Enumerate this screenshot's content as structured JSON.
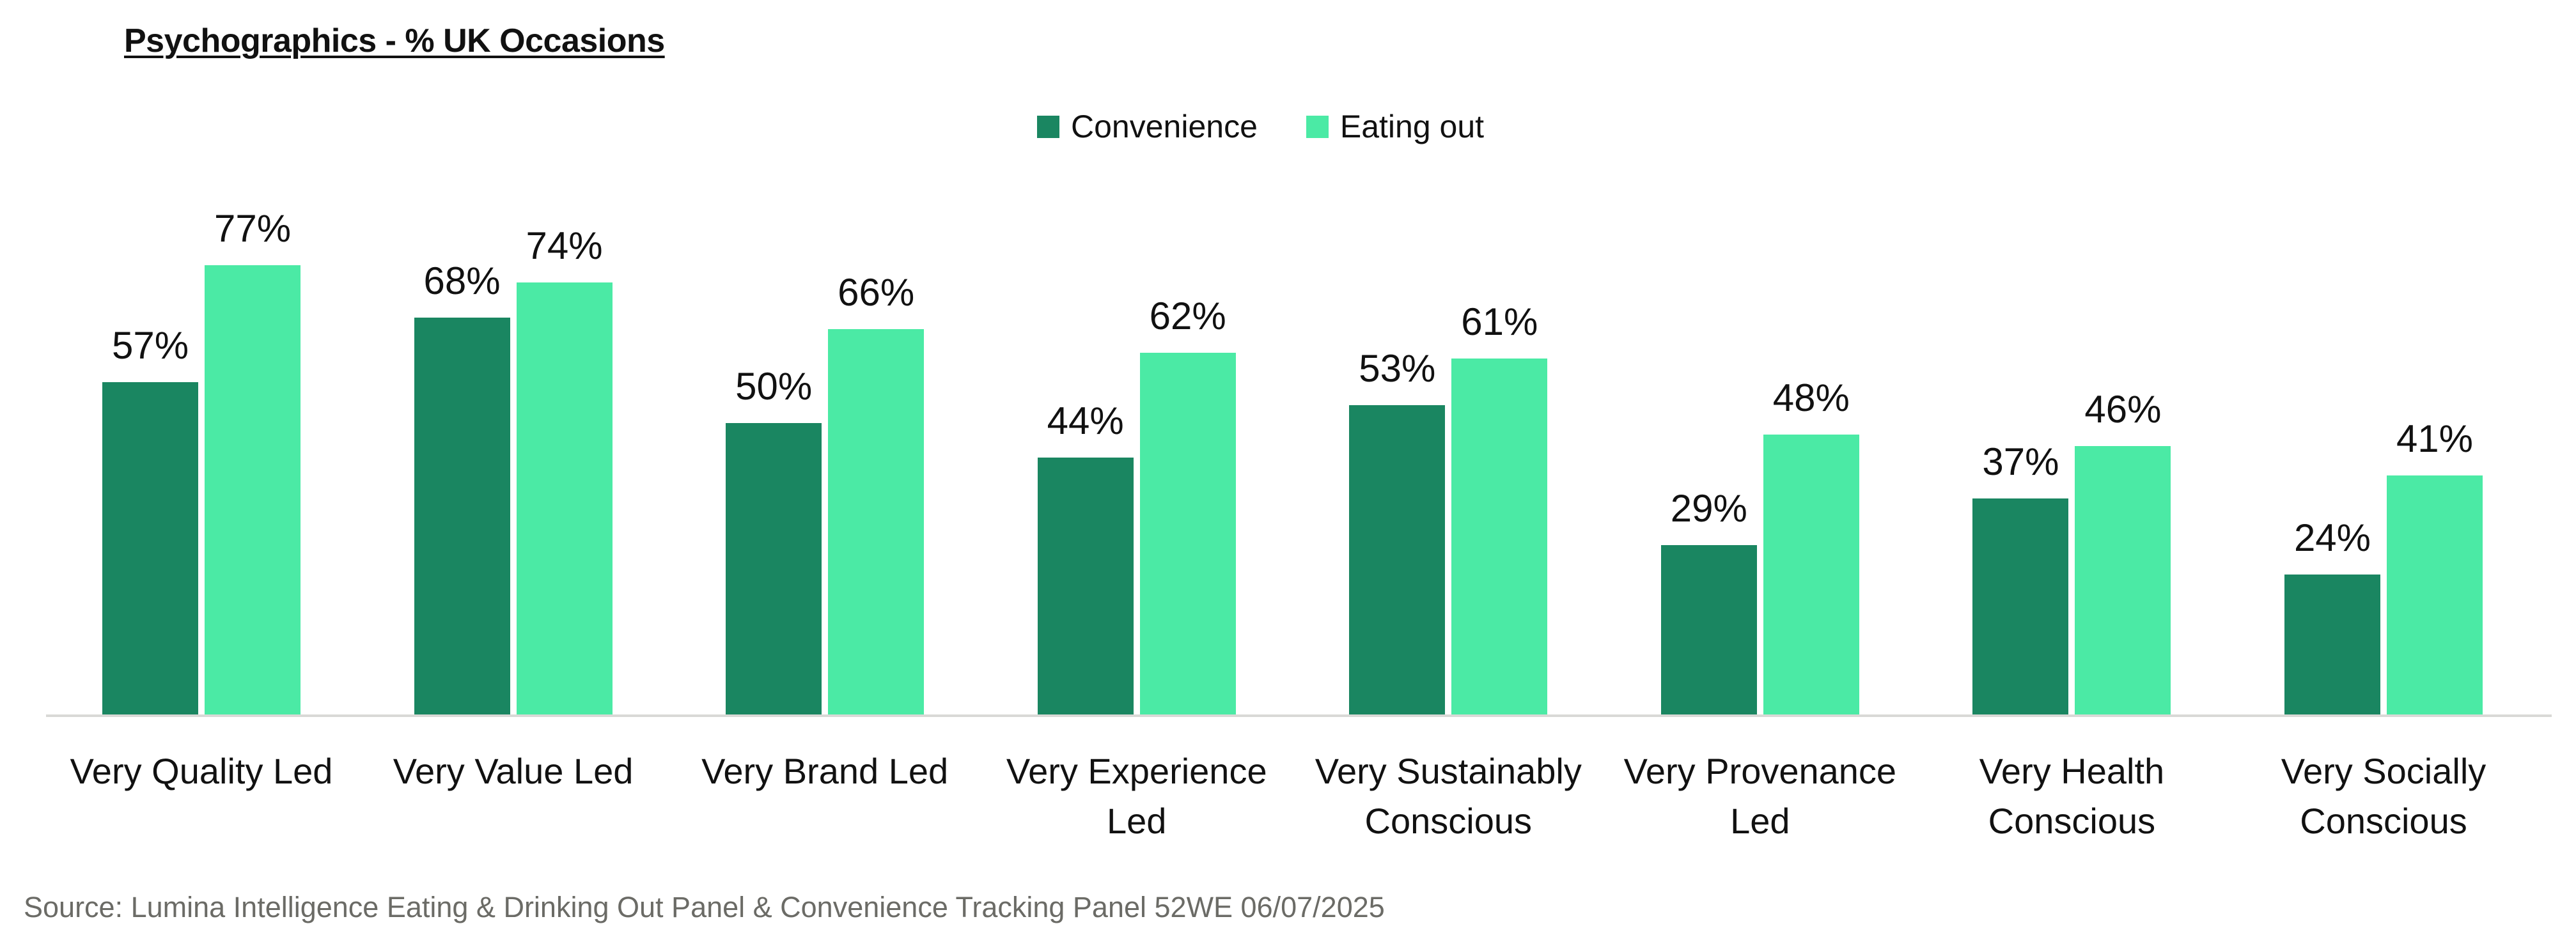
{
  "chart_data": {
    "type": "bar",
    "title": "Psychographics - % UK Occasions",
    "xlabel": "",
    "ylabel": "",
    "ylim": [
      0,
      100
    ],
    "grid": false,
    "legend_position": "top-center",
    "categories": [
      "Very Quality Led",
      "Very Value Led",
      "Very Brand Led",
      "Very Experience Led",
      "Very Sustainably Conscious",
      "Very Provenance Led",
      "Very Health Conscious",
      "Very Socially Conscious"
    ],
    "category_lines": [
      [
        "Very Quality Led"
      ],
      [
        "Very Value Led"
      ],
      [
        "Very Brand Led"
      ],
      [
        "Very Experience",
        "Led"
      ],
      [
        "Very Sustainably",
        "Conscious"
      ],
      [
        "Very Provenance",
        "Led"
      ],
      [
        "Very Health",
        "Conscious"
      ],
      [
        "Very Socially",
        "Conscious"
      ]
    ],
    "series": [
      {
        "name": "Convenience",
        "color": "#1A8661",
        "values": [
          57,
          68,
          50,
          44,
          53,
          29,
          37,
          24
        ]
      },
      {
        "name": "Eating out",
        "color": "#4BEAA5",
        "values": [
          77,
          74,
          66,
          62,
          61,
          48,
          46,
          41
        ]
      }
    ],
    "value_format": "{v}%",
    "source": "Source: Lumina Intelligence Eating & Drinking Out Panel & Convenience Tracking Panel 52WE 06/07/2025"
  },
  "header": {
    "title": "Psychographics - % UK Occasions"
  },
  "legend": {
    "items": [
      {
        "label": "Convenience",
        "color": "#1A8661"
      },
      {
        "label": "Eating out",
        "color": "#4BEAA5"
      }
    ]
  },
  "footer": {
    "source": "Source: Lumina Intelligence Eating & Drinking Out Panel & Convenience Tracking Panel 52WE 06/07/2025"
  },
  "colors": {
    "axis": "#D9D9D6",
    "text": "#111111",
    "source_text": "#6B6B66"
  }
}
